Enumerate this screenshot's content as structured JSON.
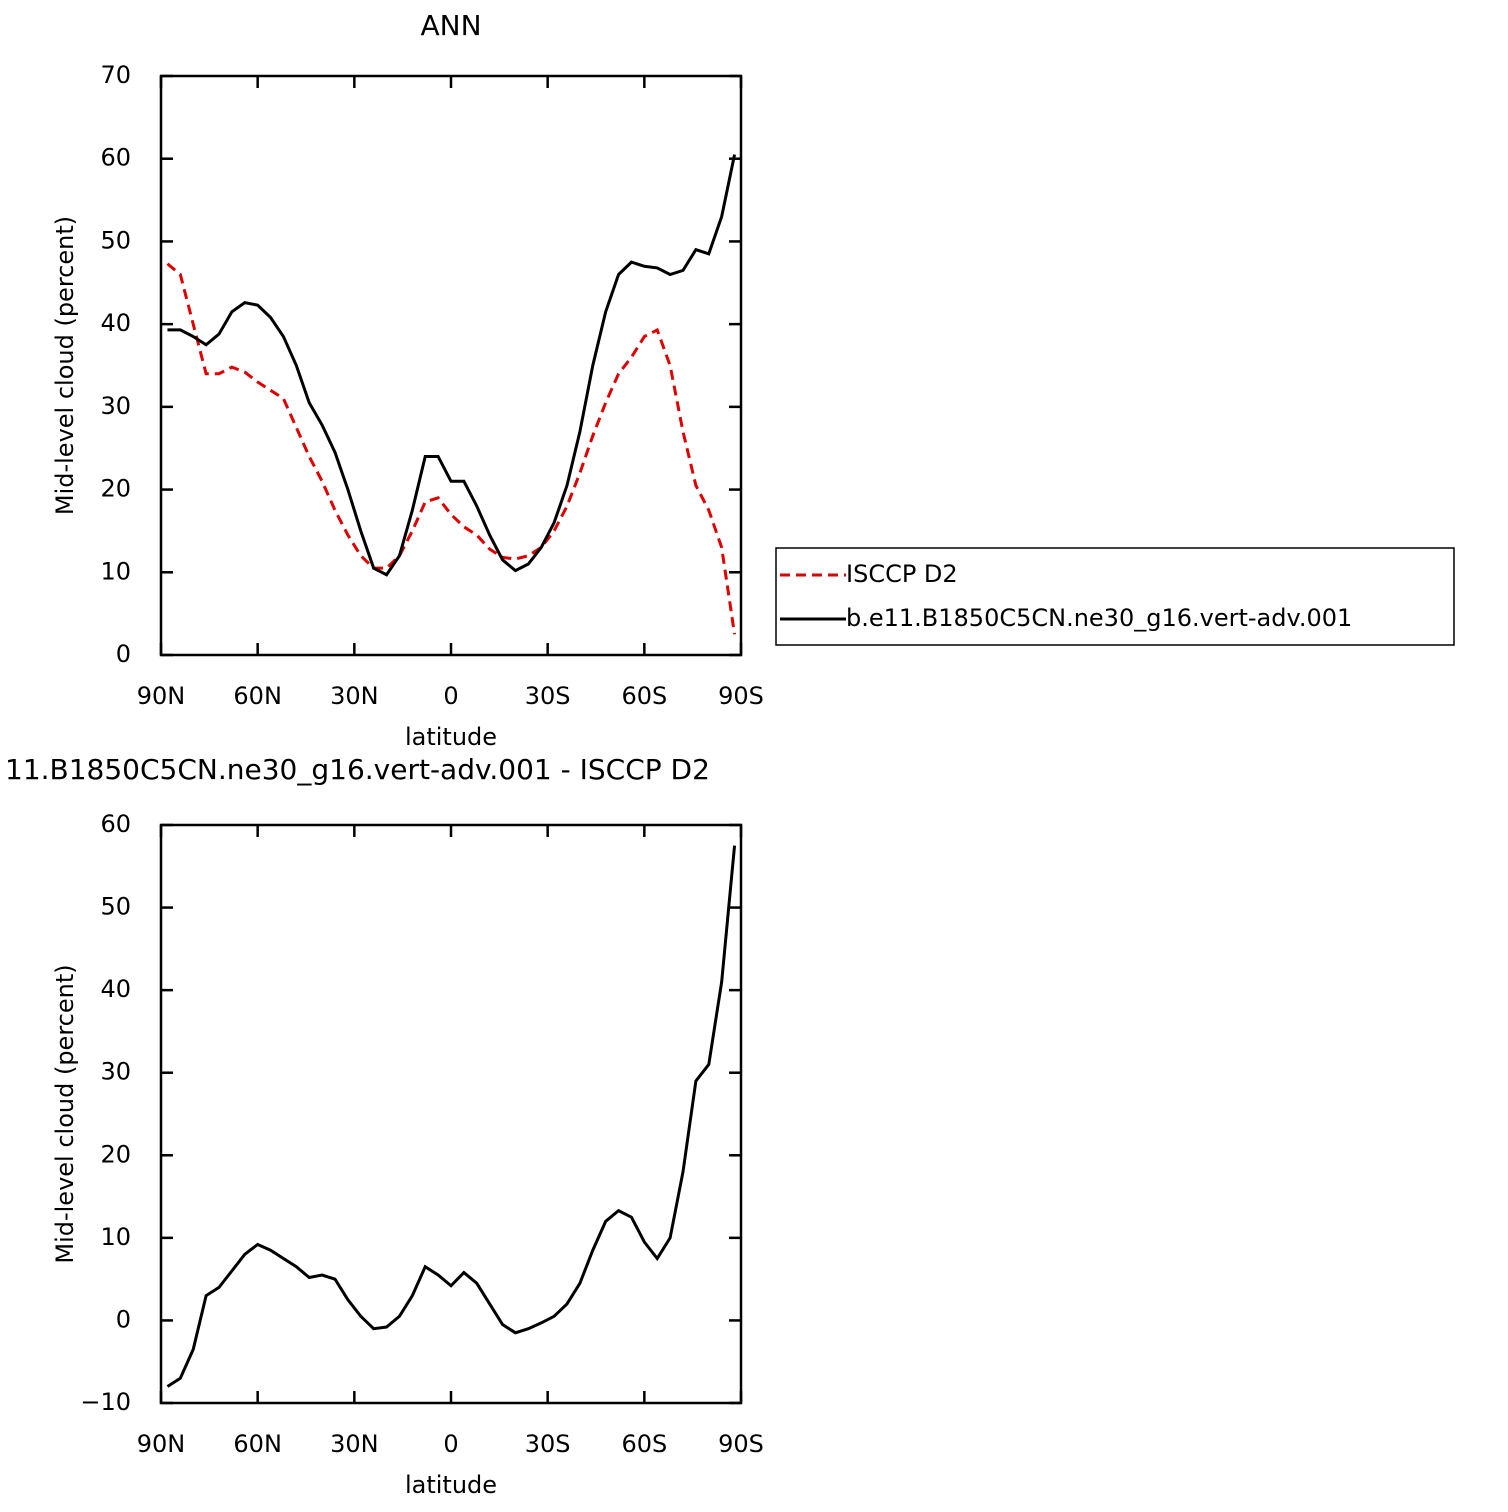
{
  "chart_data": [
    {
      "type": "line",
      "title": "ANN",
      "xlabel": "latitude",
      "ylabel": "Mid-level cloud (percent)",
      "x": [
        88,
        84,
        80,
        76,
        72,
        68,
        64,
        60,
        56,
        52,
        48,
        44,
        40,
        36,
        32,
        28,
        24,
        20,
        16,
        12,
        8,
        4,
        0,
        -4,
        -8,
        -12,
        -16,
        -20,
        -24,
        -28,
        -32,
        -36,
        -40,
        -44,
        -48,
        -52,
        -56,
        -60,
        -64,
        -68,
        -72,
        -76,
        -80,
        -84,
        -88
      ],
      "series": [
        {
          "name": "ISCCP D2",
          "color": "#e00000",
          "dash": true,
          "values": [
            47.3,
            46,
            40,
            34,
            34,
            34.8,
            34.2,
            33,
            32,
            31,
            27.5,
            24,
            21,
            17.5,
            14.5,
            12,
            10.5,
            10.5,
            12,
            15,
            18.5,
            19,
            17,
            15.5,
            14.5,
            12.8,
            11.8,
            11.6,
            12,
            13,
            15,
            18,
            22,
            26.5,
            30.5,
            34,
            36,
            38.5,
            39.3,
            35,
            27,
            20.5,
            17.5,
            13,
            2.5
          ]
        },
        {
          "name": "b.e11.B1850C5CN.ne30_g16.vert-adv.001",
          "color": "#000000",
          "dash": false,
          "values": [
            39.3,
            39.3,
            38.5,
            37.5,
            38.8,
            41.5,
            42.6,
            42.3,
            40.8,
            38.5,
            35,
            30.5,
            27.8,
            24.5,
            20,
            15,
            10.5,
            9.7,
            12,
            17.5,
            24,
            24,
            21,
            21,
            18,
            14.5,
            11.5,
            10.2,
            11,
            13,
            16,
            20.5,
            27,
            35,
            41.5,
            46,
            47.5,
            47,
            46.8,
            46,
            46.5,
            49,
            48.5,
            53,
            60.5
          ]
        }
      ],
      "xlim": [
        90,
        -90
      ],
      "ylim": [
        0,
        70
      ],
      "xticks": [
        {
          "value": 90,
          "label": "90N"
        },
        {
          "value": 60,
          "label": "60N"
        },
        {
          "value": 30,
          "label": "30N"
        },
        0,
        {
          "value": -30,
          "label": "30S"
        },
        {
          "value": -60,
          "label": "60S"
        },
        {
          "value": -90,
          "label": "90S"
        }
      ],
      "yticks": [
        0,
        10,
        20,
        30,
        40,
        50,
        60,
        70
      ],
      "legend": "right"
    },
    {
      "type": "line",
      "title": "11.B1850C5CN.ne30_g16.vert-adv.001 - ISCCP D2",
      "xlabel": "latitude",
      "ylabel": "Mid-level cloud (percent)",
      "x": [
        88,
        84,
        80,
        76,
        72,
        68,
        64,
        60,
        56,
        52,
        48,
        44,
        40,
        36,
        32,
        28,
        24,
        20,
        16,
        12,
        8,
        4,
        0,
        -4,
        -8,
        -12,
        -16,
        -20,
        -24,
        -28,
        -32,
        -36,
        -40,
        -44,
        -48,
        -52,
        -56,
        -60,
        -64,
        -68,
        -72,
        -76,
        -80,
        -84,
        -88
      ],
      "series": [
        {
          "color": "#000000",
          "dash": false,
          "values": [
            -8,
            -7,
            -3.5,
            3,
            4,
            6,
            8,
            9.2,
            8.5,
            7.5,
            6.5,
            5.2,
            5.5,
            5,
            2.5,
            0.5,
            -1,
            -0.8,
            0.5,
            3,
            6.5,
            5.5,
            4.2,
            5.8,
            4.5,
            2,
            -0.5,
            -1.5,
            -1,
            -0.3,
            0.5,
            2,
            4.5,
            8.5,
            12,
            13.3,
            12.5,
            9.5,
            7.5,
            10,
            18,
            29,
            31,
            41,
            57.5
          ]
        }
      ],
      "xlim": [
        90,
        -90
      ],
      "ylim": [
        -10,
        60
      ],
      "xticks": [
        {
          "value": 90,
          "label": "90N"
        },
        {
          "value": 60,
          "label": "60N"
        },
        {
          "value": 30,
          "label": "30N"
        },
        0,
        {
          "value": -30,
          "label": "30S"
        },
        {
          "value": -60,
          "label": "60S"
        },
        {
          "value": -90,
          "label": "90S"
        }
      ],
      "yticks": [
        {
          "value": -10,
          "label": "−10"
        },
        0,
        10,
        20,
        30,
        40,
        50,
        60
      ]
    }
  ]
}
